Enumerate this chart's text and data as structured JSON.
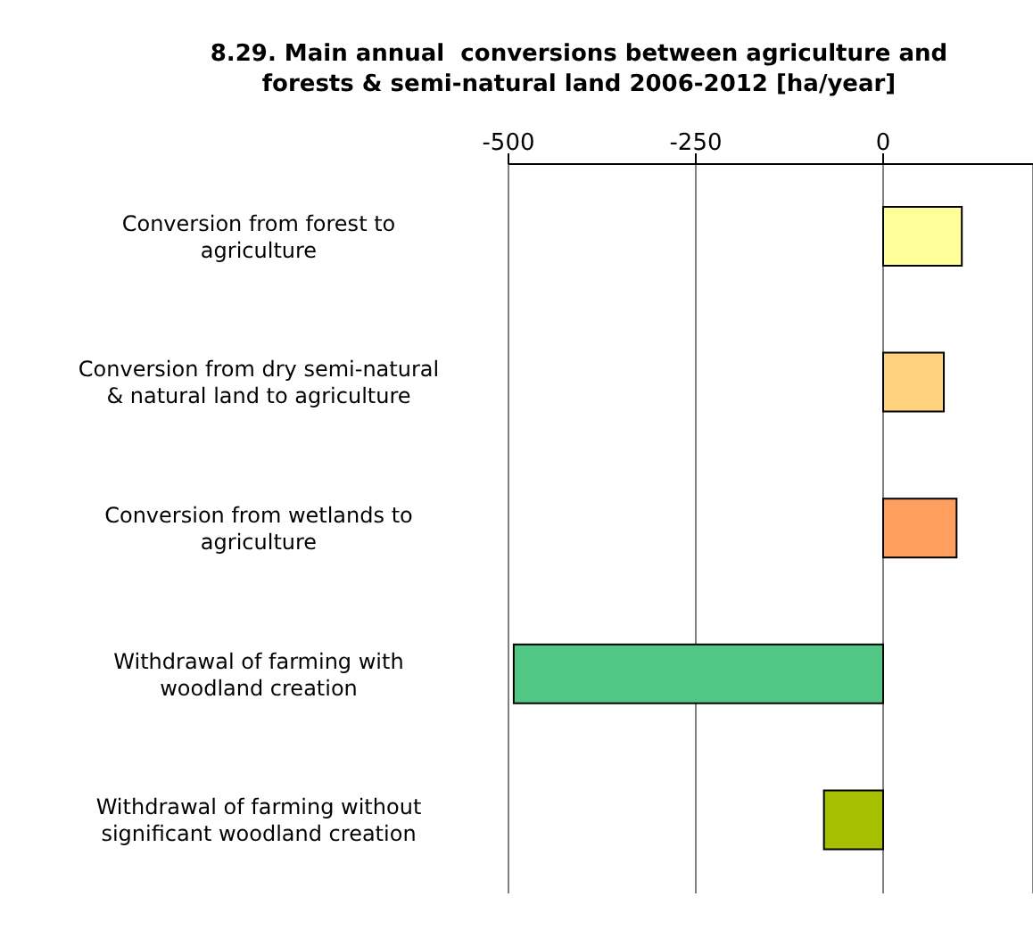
{
  "chart_data": {
    "type": "bar",
    "orientation": "horizontal",
    "title": "8.29. Main annual  conversions between agriculture and forests & semi-natural land 2006-2012 [ha/year]",
    "categories": [
      "Conversion from forest to agriculture",
      "Conversion from dry semi-natural & natural land to agriculture",
      "Conversion from wetlands to agriculture",
      "Withdrawal of farming with woodland creation",
      "Withdrawal of farming without significant woodland creation"
    ],
    "values": [
      105,
      81,
      98,
      -493,
      -79
    ],
    "colors": [
      "#ffff99",
      "#ffd280",
      "#ff9f5f",
      "#52c785",
      "#a6bf00"
    ],
    "xlim": [
      -500,
      200
    ],
    "xticks": [
      -500,
      -250,
      0
    ],
    "grid": "x"
  }
}
